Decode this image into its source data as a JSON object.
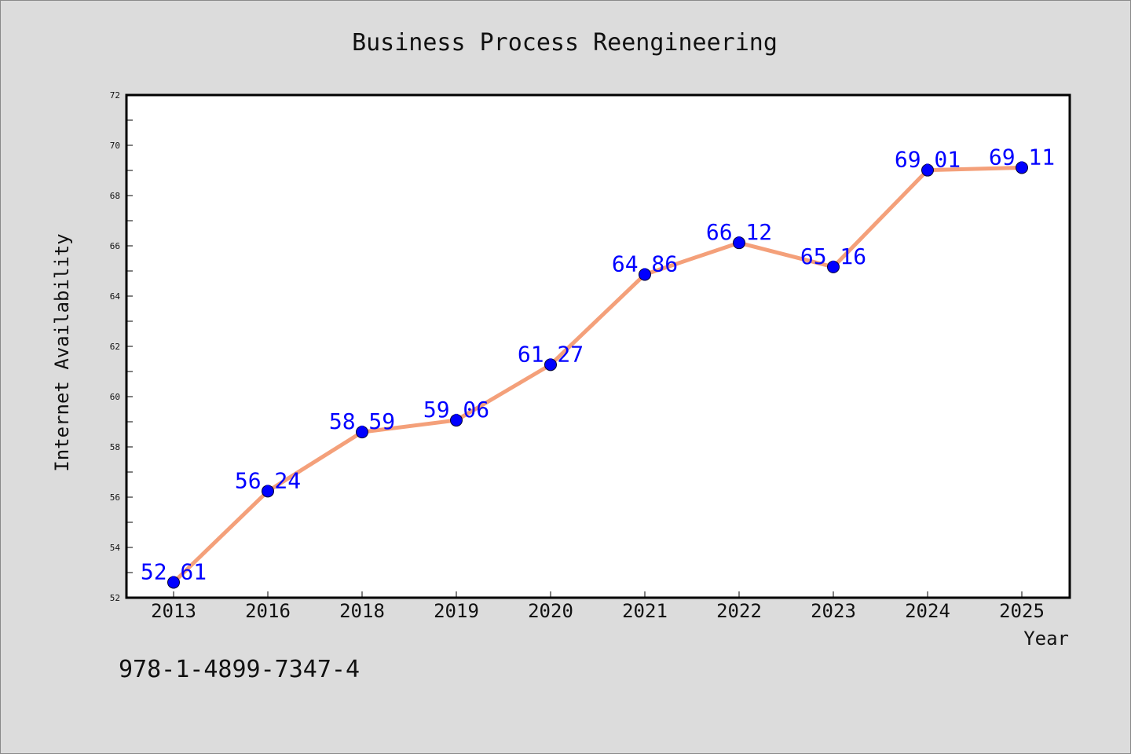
{
  "chart_data": {
    "type": "line",
    "title": "Business Process Reengineering",
    "xlabel": "Year",
    "ylabel": "Internet Availability",
    "categories": [
      "2013",
      "2016",
      "2018",
      "2019",
      "2020",
      "2021",
      "2022",
      "2023",
      "2024",
      "2025"
    ],
    "series": [
      {
        "values": [
          52.61,
          56.24,
          58.59,
          59.06,
          61.27,
          64.86,
          66.12,
          65.16,
          69.01,
          69.11
        ],
        "line_color": "#f4a07a",
        "marker_color": "#0000ff"
      }
    ],
    "data_labels": [
      "52.61",
      "56.24",
      "58.59",
      "59.06",
      "61.27",
      "64.86",
      "66.12",
      "65.16",
      "69.01",
      "69.11"
    ],
    "ylim": [
      52,
      72
    ],
    "y_ticks": [
      "52",
      "54",
      "56",
      "58",
      "60",
      "62",
      "64",
      "66",
      "68",
      "70",
      "72"
    ],
    "grid": false,
    "label_color": "#0000ff"
  },
  "footer": {
    "isbn": "978-1-4899-7347-4"
  }
}
